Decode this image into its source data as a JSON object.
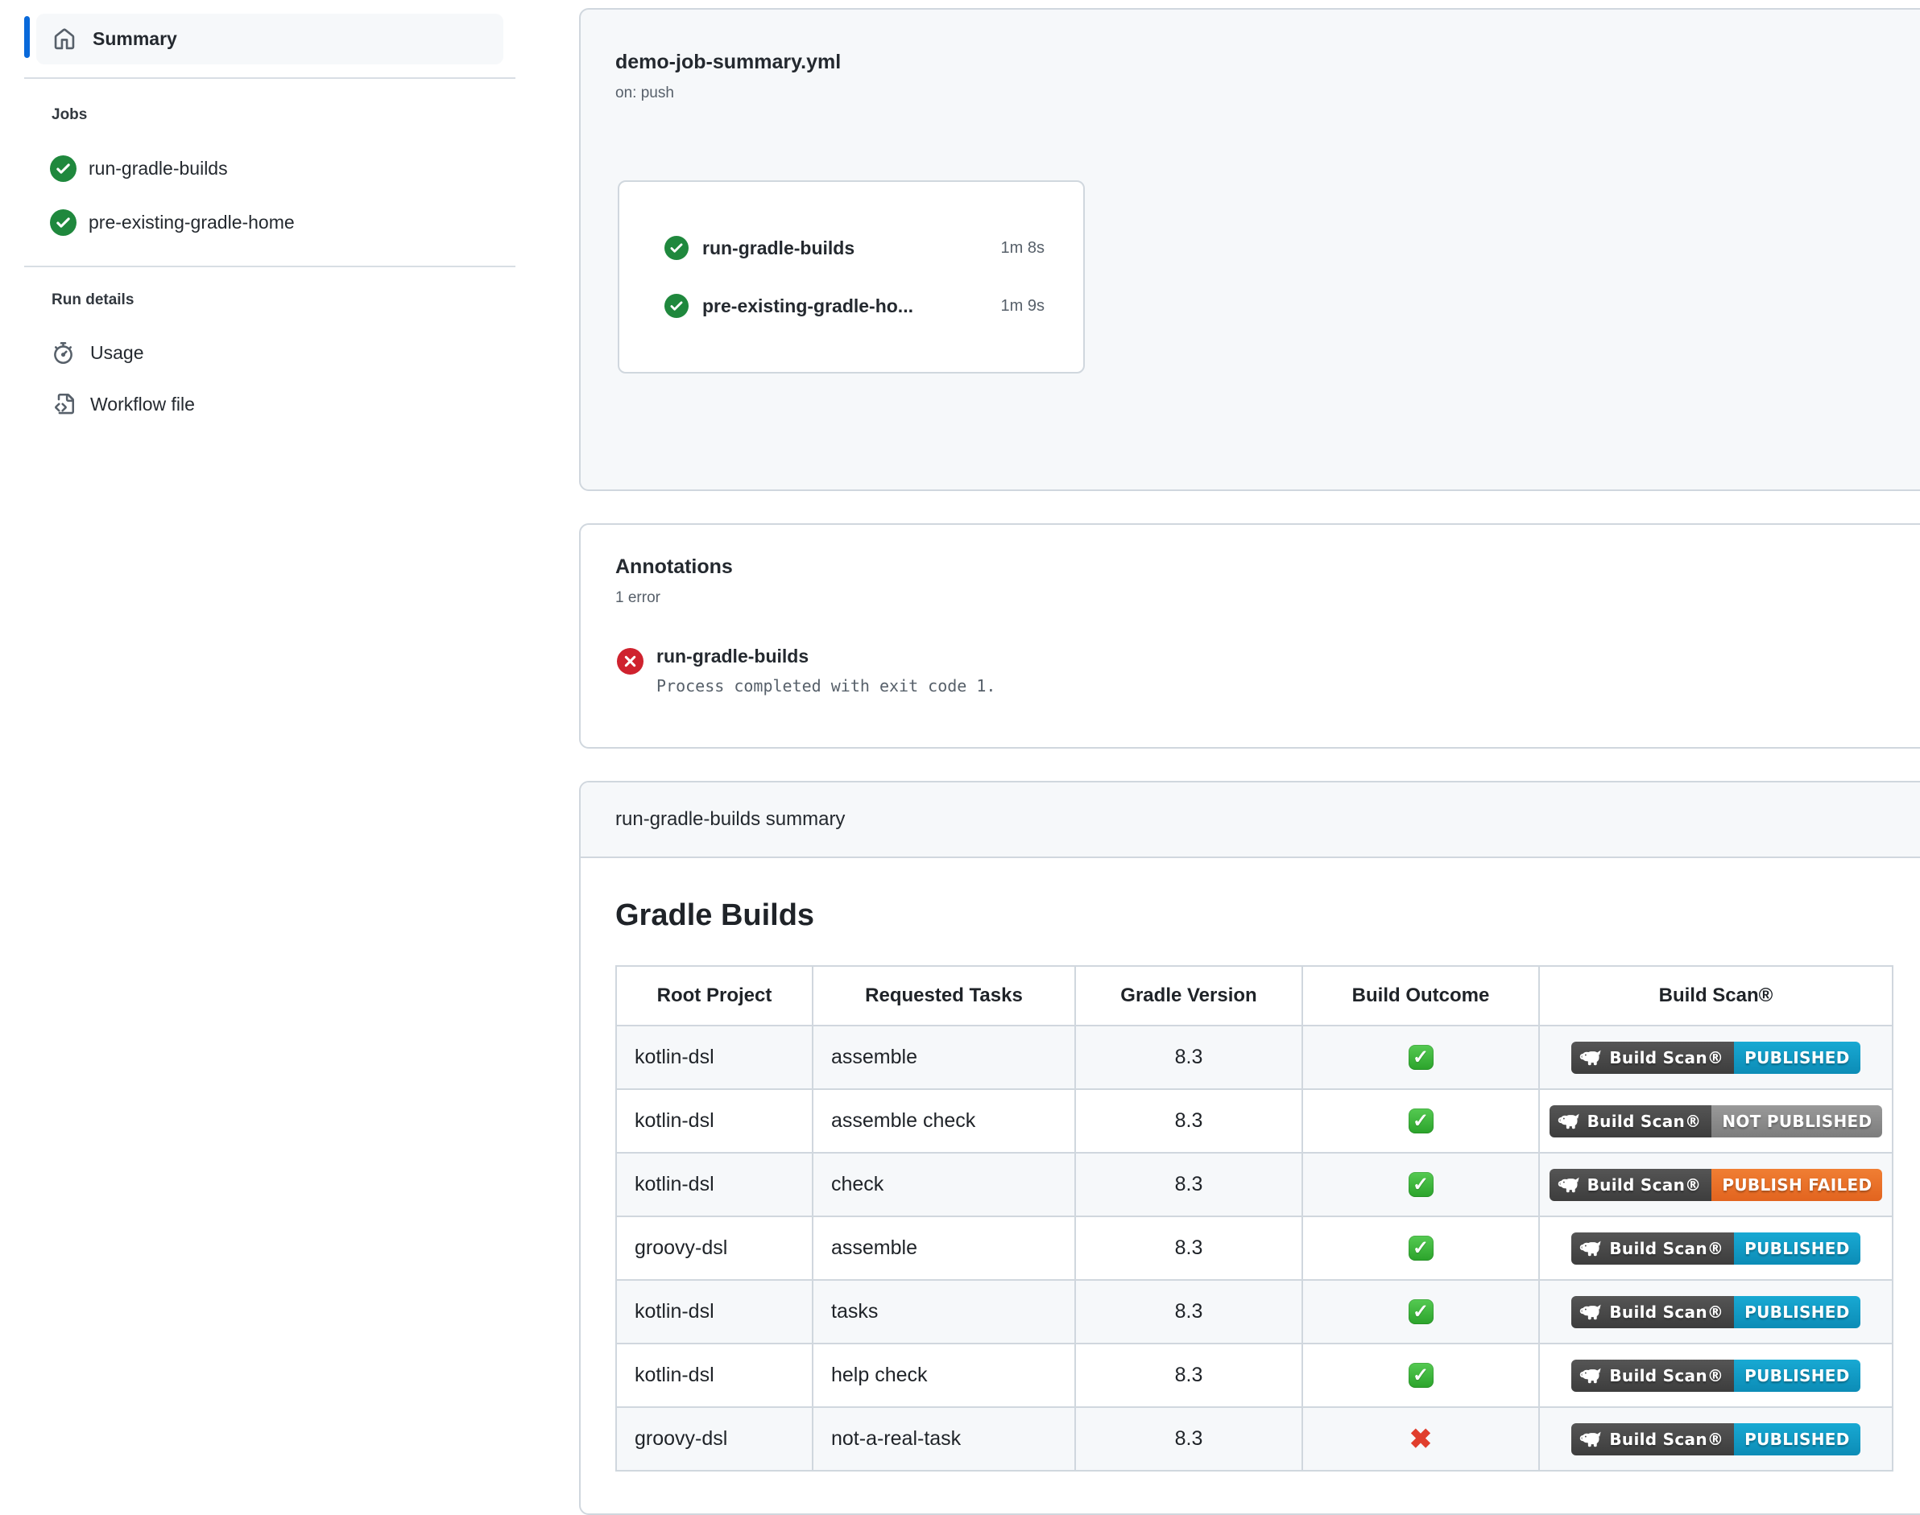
{
  "colors": {
    "accent_blue": "#0969da",
    "success_green": "#1f883d",
    "danger_red": "#cf222e",
    "border": "#d0d7de",
    "subtle_bg": "#f6f8fa",
    "text": "#24292f",
    "muted_text": "#57606a",
    "badge_dark": "#474747",
    "badge_published": "#0fa0c8",
    "badge_not_published": "#8a8a8a",
    "badge_publish_failed": "#e8702f"
  },
  "sidebar": {
    "summary_label": "Summary",
    "jobs_section_label": "Jobs",
    "jobs": [
      {
        "name": "run-gradle-builds",
        "status": "success"
      },
      {
        "name": "pre-existing-gradle-home",
        "status": "success"
      }
    ],
    "run_details_label": "Run details",
    "usage_label": "Usage",
    "workflow_file_label": "Workflow file"
  },
  "workflow_card": {
    "title": "demo-job-summary.yml",
    "trigger": "on: push",
    "graph_jobs": [
      {
        "name": "run-gradle-builds",
        "duration": "1m 8s",
        "status": "success"
      },
      {
        "name": "pre-existing-gradle-ho...",
        "duration": "1m 9s",
        "status": "success"
      }
    ]
  },
  "annotations": {
    "title": "Annotations",
    "count_label": "1 error",
    "items": [
      {
        "job": "run-gradle-builds",
        "message": "Process completed with exit code 1.",
        "level": "error"
      }
    ]
  },
  "job_summary": {
    "header_title": "run-gradle-builds summary",
    "heading": "Gradle Builds",
    "badge_label": "Build Scan®",
    "table": {
      "columns": [
        "Root Project",
        "Requested Tasks",
        "Gradle Version",
        "Build Outcome",
        "Build Scan®"
      ],
      "rows": [
        {
          "root_project": "kotlin-dsl",
          "requested_tasks": "assemble",
          "gradle_version": "8.3",
          "build_outcome": "success",
          "build_scan": "PUBLISHED"
        },
        {
          "root_project": "kotlin-dsl",
          "requested_tasks": "assemble check",
          "gradle_version": "8.3",
          "build_outcome": "success",
          "build_scan": "NOT PUBLISHED"
        },
        {
          "root_project": "kotlin-dsl",
          "requested_tasks": "check",
          "gradle_version": "8.3",
          "build_outcome": "success",
          "build_scan": "PUBLISH FAILED"
        },
        {
          "root_project": "groovy-dsl",
          "requested_tasks": "assemble",
          "gradle_version": "8.3",
          "build_outcome": "success",
          "build_scan": "PUBLISHED"
        },
        {
          "root_project": "kotlin-dsl",
          "requested_tasks": "tasks",
          "gradle_version": "8.3",
          "build_outcome": "success",
          "build_scan": "PUBLISHED"
        },
        {
          "root_project": "kotlin-dsl",
          "requested_tasks": "help check",
          "gradle_version": "8.3",
          "build_outcome": "success",
          "build_scan": "PUBLISHED"
        },
        {
          "root_project": "groovy-dsl",
          "requested_tasks": "not-a-real-task",
          "gradle_version": "8.3",
          "build_outcome": "failure",
          "build_scan": "PUBLISHED"
        }
      ]
    }
  }
}
